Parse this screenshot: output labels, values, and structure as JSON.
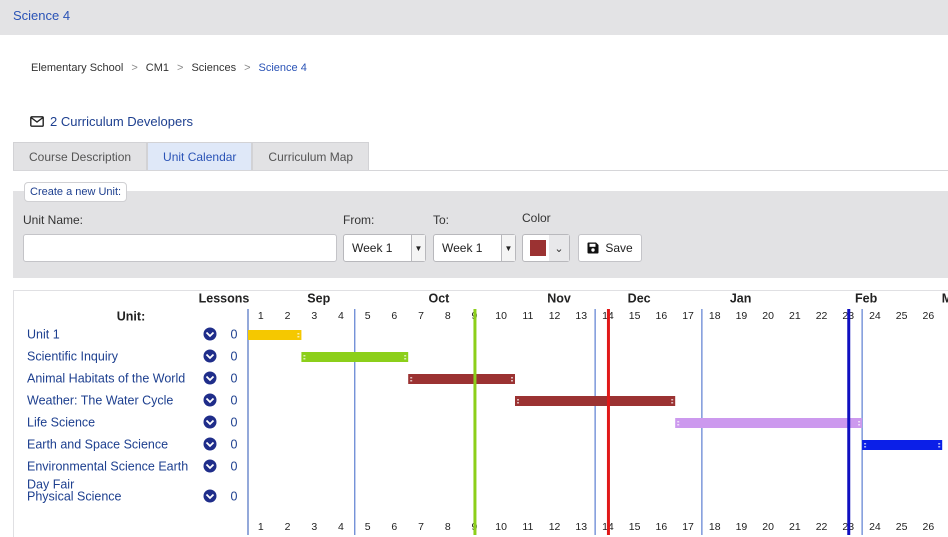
{
  "app": {
    "title": "Science 4"
  },
  "breadcrumb": [
    {
      "label": "Elementary School"
    },
    {
      "label": "CM1"
    },
    {
      "label": "Sciences"
    },
    {
      "label": "Science 4",
      "current": true
    }
  ],
  "developers": {
    "label": "2 Curriculum Developers",
    "icon": "envelope-icon"
  },
  "tabs": [
    {
      "label": "Course Description",
      "active": false
    },
    {
      "label": "Unit Calendar",
      "active": true
    },
    {
      "label": "Curriculum Map",
      "active": false
    }
  ],
  "form": {
    "legend": "Create a new Unit:",
    "unit_name_label": "Unit Name:",
    "unit_name_value": "",
    "from_label": "From:",
    "from_value": "Week 1",
    "to_label": "To:",
    "to_value": "Week 1",
    "color_label": "Color",
    "color_value": "#9b3232",
    "save_label": "Save"
  },
  "calendar": {
    "unit_header": "Unit:",
    "lessons_header": "Lessons",
    "months": [
      "Sep",
      "Oct",
      "Nov",
      "Dec",
      "Jan",
      "Feb",
      "Mar"
    ],
    "weeks": [
      "1",
      "2",
      "3",
      "4",
      "5",
      "6",
      "7",
      "8",
      "9",
      "10",
      "11",
      "12",
      "13",
      "14",
      "15",
      "16",
      "17",
      "18",
      "19",
      "20",
      "21",
      "22",
      "23",
      "24",
      "25",
      "26"
    ],
    "month_start_weeks": [
      5,
      14,
      18,
      24
    ],
    "markers": [
      {
        "week": 9.5,
        "color": "#8ccf1a"
      },
      {
        "week": 14.5,
        "color": "#e01818"
      },
      {
        "week": 23.5,
        "color": "#1010c0"
      }
    ],
    "units": [
      {
        "name": "Unit 1",
        "lessons": "0",
        "start_week": 1,
        "end_week": 2,
        "color": "#f5c800"
      },
      {
        "name": "Scientific Inquiry",
        "lessons": "0",
        "start_week": 3,
        "end_week": 6,
        "color": "#8ccf1a"
      },
      {
        "name": "Animal Habitats of the World",
        "lessons": "0",
        "start_week": 7,
        "end_week": 10,
        "color": "#9b3232"
      },
      {
        "name": "Weather: The Water Cycle",
        "lessons": "0",
        "start_week": 11,
        "end_week": 16,
        "color": "#9b3232"
      },
      {
        "name": "Life Science",
        "lessons": "0",
        "start_week": 17,
        "end_week": 23,
        "color": "#cc99ee"
      },
      {
        "name": "Earth and Space Science",
        "lessons": "0",
        "start_week": 24,
        "end_week": 26,
        "color": "#0b1fe8"
      },
      {
        "name": "Environmental Science Earth Day Fair",
        "lessons": "0",
        "start_week": null,
        "end_week": null,
        "color": ""
      },
      {
        "name": "Physical Science",
        "lessons": "0",
        "start_week": null,
        "end_week": null,
        "color": ""
      }
    ]
  }
}
